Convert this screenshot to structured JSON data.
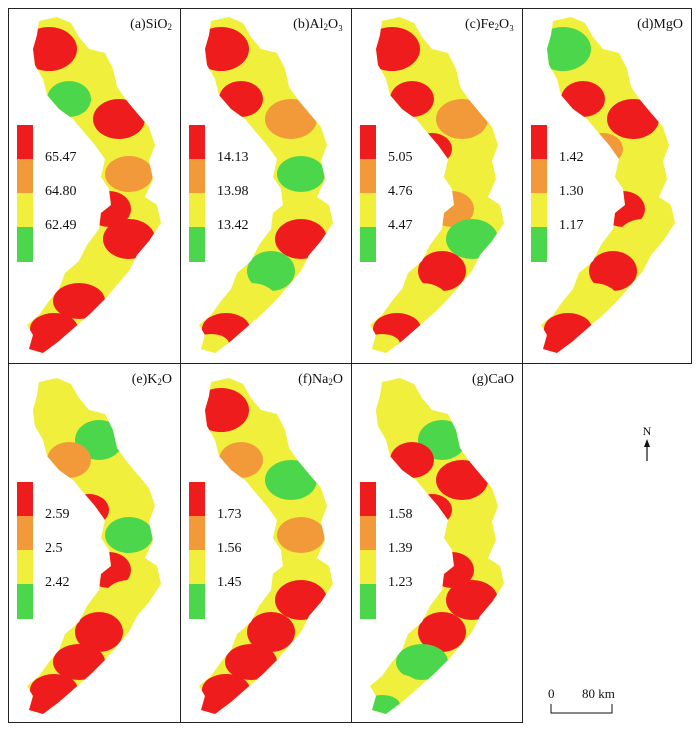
{
  "colors": {
    "high": "#ee1c1c",
    "midhigh": "#f29a3a",
    "midlow": "#efef3c",
    "low": "#4cd64c"
  },
  "panels": [
    {
      "id": "a",
      "title_prefix": "(a)SiO",
      "title_sub": "2",
      "title_suffix": "",
      "legend": [
        "65.47",
        "64.80",
        "62.49"
      ]
    },
    {
      "id": "b",
      "title_prefix": "(b)Al",
      "title_sub": "2",
      "title_suffix": "O₃",
      "legend": [
        "14.13",
        "13.98",
        "13.42"
      ]
    },
    {
      "id": "c",
      "title_prefix": "(c)Fe",
      "title_sub": "2",
      "title_suffix": "O₃",
      "legend": [
        "5.05",
        "4.76",
        "4.47"
      ]
    },
    {
      "id": "d",
      "title_prefix": "(d)MgO",
      "title_sub": "",
      "title_suffix": "",
      "legend": [
        "1.42",
        "1.30",
        "1.17"
      ]
    },
    {
      "id": "e",
      "title_prefix": "(e)K",
      "title_sub": "2",
      "title_suffix": "O",
      "legend": [
        "2.59",
        "2.5",
        "2.42"
      ]
    },
    {
      "id": "f",
      "title_prefix": "(f)Na",
      "title_sub": "2",
      "title_suffix": "O",
      "legend": [
        "1.73",
        "1.56",
        "1.45"
      ]
    },
    {
      "id": "g",
      "title_prefix": "(g)CaO",
      "title_sub": "",
      "title_suffix": "",
      "legend": [
        "1.58",
        "1.39",
        "1.23"
      ]
    }
  ],
  "north_label": "N",
  "scale": {
    "zero": "0",
    "distance": "80 km"
  }
}
